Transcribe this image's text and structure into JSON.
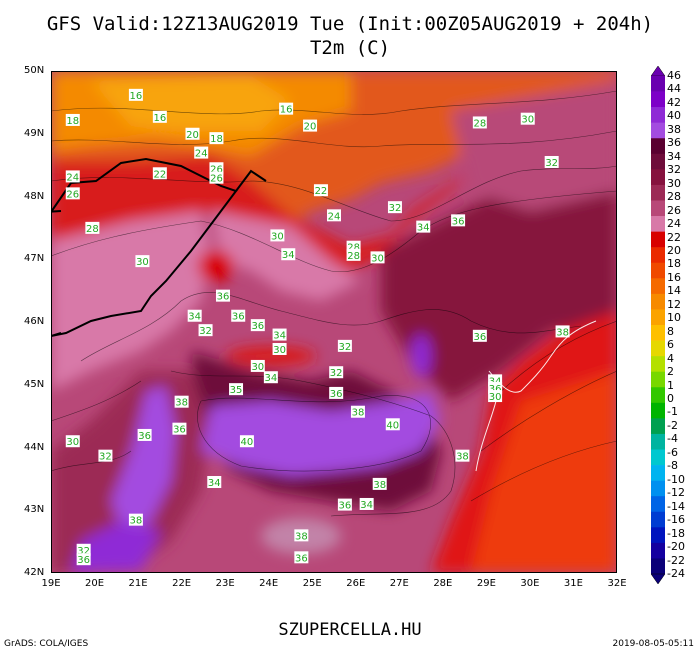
{
  "header": {
    "title": "GFS Valid:12Z13AUG2019 Tue (Init:00Z05AUG2019 + 204h)",
    "subtitle": "T2m (C)"
  },
  "axes": {
    "lat_labels": [
      "50N",
      "49N",
      "48N",
      "47N",
      "46N",
      "45N",
      "44N",
      "43N",
      "42N"
    ],
    "lon_labels": [
      "19E",
      "20E",
      "21E",
      "22E",
      "23E",
      "24E",
      "25E",
      "26E",
      "27E",
      "28E",
      "29E",
      "30E",
      "31E",
      "32E"
    ]
  },
  "colorbar": {
    "labels": [
      "46",
      "44",
      "42",
      "40",
      "38",
      "36",
      "34",
      "32",
      "30",
      "28",
      "26",
      "24",
      "22",
      "20",
      "18",
      "16",
      "14",
      "12",
      "10",
      "8",
      "6",
      "4",
      "2",
      "1",
      "0",
      "-1",
      "-2",
      "-4",
      "-6",
      "-8",
      "-10",
      "-12",
      "-14",
      "-16",
      "-18",
      "-20",
      "-22",
      "-24"
    ],
    "colors": [
      "#6a00b0",
      "#7d00c8",
      "#8f2ad6",
      "#a34ce0",
      "#5a0030",
      "#6e0c3a",
      "#86123e",
      "#9c2a55",
      "#b84878",
      "#d879a8",
      "#d80000",
      "#ea2a00",
      "#f04a00",
      "#f56a00",
      "#f78a00",
      "#fba300",
      "#fec000",
      "#e6d800",
      "#b4e000",
      "#78d800",
      "#32c800",
      "#00b400",
      "#00a050",
      "#00b4a0",
      "#00c8d0",
      "#00b4f0",
      "#0090f0",
      "#0064e6",
      "#003cd2",
      "#0014be",
      "#1400a0",
      "#0a0078"
    ]
  },
  "map_labels": [
    {
      "v": "16",
      "lon": 20.95,
      "lat": 49.62
    },
    {
      "v": "18",
      "lon": 19.5,
      "lat": 49.22
    },
    {
      "v": "16",
      "lon": 21.5,
      "lat": 49.27
    },
    {
      "v": "16",
      "lon": 24.4,
      "lat": 49.4
    },
    {
      "v": "20",
      "lon": 24.95,
      "lat": 49.13
    },
    {
      "v": "20",
      "lon": 22.25,
      "lat": 49.0
    },
    {
      "v": "18",
      "lon": 22.8,
      "lat": 48.93
    },
    {
      "v": "24",
      "lon": 22.45,
      "lat": 48.7
    },
    {
      "v": "26",
      "lon": 22.8,
      "lat": 48.45
    },
    {
      "v": "26",
      "lon": 22.8,
      "lat": 48.3
    },
    {
      "v": "22",
      "lon": 21.5,
      "lat": 48.37
    },
    {
      "v": "24",
      "lon": 19.5,
      "lat": 48.32
    },
    {
      "v": "26",
      "lon": 19.5,
      "lat": 48.05
    },
    {
      "v": "28",
      "lon": 28.85,
      "lat": 49.18
    },
    {
      "v": "30",
      "lon": 29.95,
      "lat": 49.24
    },
    {
      "v": "32",
      "lon": 30.5,
      "lat": 48.55
    },
    {
      "v": "22",
      "lon": 25.2,
      "lat": 48.1
    },
    {
      "v": "24",
      "lon": 25.5,
      "lat": 47.7
    },
    {
      "v": "32",
      "lon": 26.9,
      "lat": 47.83
    },
    {
      "v": "34",
      "lon": 27.55,
      "lat": 47.52
    },
    {
      "v": "36",
      "lon": 28.35,
      "lat": 47.62
    },
    {
      "v": "28",
      "lon": 19.95,
      "lat": 47.5
    },
    {
      "v": "30",
      "lon": 24.2,
      "lat": 47.38
    },
    {
      "v": "28",
      "lon": 25.95,
      "lat": 47.2
    },
    {
      "v": "28",
      "lon": 25.95,
      "lat": 47.07
    },
    {
      "v": "30",
      "lon": 26.5,
      "lat": 47.03
    },
    {
      "v": "34",
      "lon": 24.45,
      "lat": 47.08
    },
    {
      "v": "30",
      "lon": 21.1,
      "lat": 46.97
    },
    {
      "v": "36",
      "lon": 22.95,
      "lat": 46.42
    },
    {
      "v": "34",
      "lon": 22.3,
      "lat": 46.1
    },
    {
      "v": "36",
      "lon": 23.3,
      "lat": 46.1
    },
    {
      "v": "36",
      "lon": 23.75,
      "lat": 45.95
    },
    {
      "v": "32",
      "lon": 22.55,
      "lat": 45.87
    },
    {
      "v": "34",
      "lon": 24.25,
      "lat": 45.8
    },
    {
      "v": "30",
      "lon": 24.25,
      "lat": 45.57
    },
    {
      "v": "32",
      "lon": 25.75,
      "lat": 45.62
    },
    {
      "v": "36",
      "lon": 28.85,
      "lat": 45.78
    },
    {
      "v": "38",
      "lon": 30.75,
      "lat": 45.85
    },
    {
      "v": "30",
      "lon": 23.75,
      "lat": 45.3
    },
    {
      "v": "34",
      "lon": 24.05,
      "lat": 45.12
    },
    {
      "v": "32",
      "lon": 25.55,
      "lat": 45.2
    },
    {
      "v": "34",
      "lon": 29.2,
      "lat": 45.07
    },
    {
      "v": "36",
      "lon": 29.2,
      "lat": 44.95
    },
    {
      "v": "30",
      "lon": 29.2,
      "lat": 44.82
    },
    {
      "v": "35",
      "lon": 23.25,
      "lat": 44.93
    },
    {
      "v": "38",
      "lon": 22.0,
      "lat": 44.73
    },
    {
      "v": "36",
      "lon": 25.55,
      "lat": 44.87
    },
    {
      "v": "38",
      "lon": 26.05,
      "lat": 44.57
    },
    {
      "v": "40",
      "lon": 26.85,
      "lat": 44.37
    },
    {
      "v": "36",
      "lon": 21.95,
      "lat": 44.3
    },
    {
      "v": "36",
      "lon": 21.15,
      "lat": 44.2
    },
    {
      "v": "40",
      "lon": 23.5,
      "lat": 44.1
    },
    {
      "v": "30",
      "lon": 19.5,
      "lat": 44.1
    },
    {
      "v": "32",
      "lon": 20.25,
      "lat": 43.87
    },
    {
      "v": "38",
      "lon": 28.45,
      "lat": 43.87
    },
    {
      "v": "34",
      "lon": 22.75,
      "lat": 43.45
    },
    {
      "v": "38",
      "lon": 26.55,
      "lat": 43.42
    },
    {
      "v": "36",
      "lon": 25.75,
      "lat": 43.09
    },
    {
      "v": "34",
      "lon": 26.25,
      "lat": 43.1
    },
    {
      "v": "38",
      "lon": 20.95,
      "lat": 42.85
    },
    {
      "v": "38",
      "lon": 24.75,
      "lat": 42.6
    },
    {
      "v": "36",
      "lon": 24.75,
      "lat": 42.25
    },
    {
      "v": "32",
      "lon": 19.75,
      "lat": 42.37
    },
    {
      "v": "36",
      "lon": 19.75,
      "lat": 42.22
    }
  ],
  "footer": {
    "site": "SZUPERCELLA.HU",
    "credit": "GrADS: COLA/IGES",
    "date": "2019-08-05-05:11"
  }
}
